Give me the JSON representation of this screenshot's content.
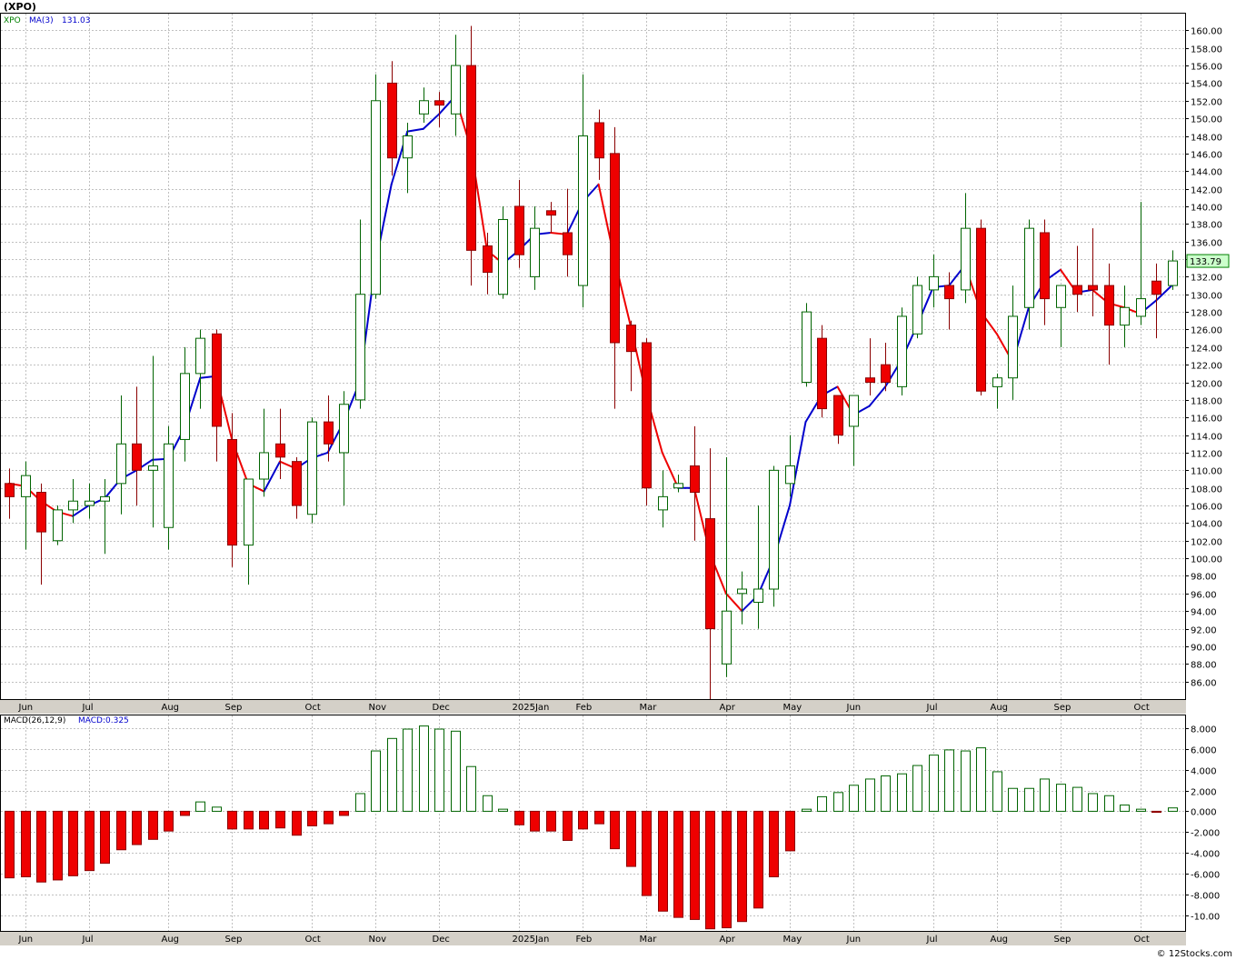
{
  "chart_data": [
    {
      "type": "candlestick",
      "symbol_label": "(XPO)",
      "legend": {
        "ticker": "XPO",
        "ma_label": "MA(3)",
        "ma_value": "131.03"
      },
      "last_price": "133.79",
      "ylim": [
        84,
        162
      ],
      "y_ticks": [
        "86.00",
        "88.00",
        "90.00",
        "92.00",
        "94.00",
        "96.00",
        "98.00",
        "100.00",
        "102.00",
        "104.00",
        "106.00",
        "108.00",
        "110.00",
        "112.00",
        "114.00",
        "116.00",
        "118.00",
        "120.00",
        "122.00",
        "124.00",
        "126.00",
        "128.00",
        "130.00",
        "132.00",
        "134.00",
        "136.00",
        "138.00",
        "140.00",
        "142.00",
        "144.00",
        "146.00",
        "148.00",
        "150.00",
        "152.00",
        "154.00",
        "156.00",
        "158.00",
        "160.00"
      ],
      "x_labels": [
        {
          "w": 1,
          "label": "Jun"
        },
        {
          "w": 5,
          "label": "Jul"
        },
        {
          "w": 10,
          "label": "Aug"
        },
        {
          "w": 14,
          "label": "Sep"
        },
        {
          "w": 19,
          "label": "Oct"
        },
        {
          "w": 23,
          "label": "Nov"
        },
        {
          "w": 27,
          "label": "Dec"
        },
        {
          "w": 32,
          "label": "2025Jan"
        },
        {
          "w": 36,
          "label": "Feb"
        },
        {
          "w": 40,
          "label": "Mar"
        },
        {
          "w": 45,
          "label": "Apr"
        },
        {
          "w": 49,
          "label": "May"
        },
        {
          "w": 53,
          "label": "Jun"
        },
        {
          "w": 58,
          "label": "Jul"
        },
        {
          "w": 62,
          "label": "Aug"
        },
        {
          "w": 66,
          "label": "Sep"
        },
        {
          "w": 71,
          "label": "Oct"
        }
      ],
      "candles": [
        {
          "o": 108.5,
          "h": 110.2,
          "l": 104.5,
          "c": 107.0
        },
        {
          "o": 107.0,
          "h": 111.0,
          "l": 101.0,
          "c": 109.4
        },
        {
          "o": 107.5,
          "h": 108.5,
          "l": 97.0,
          "c": 103.0
        },
        {
          "o": 102.0,
          "h": 106.0,
          "l": 101.5,
          "c": 105.5
        },
        {
          "o": 105.5,
          "h": 109.0,
          "l": 104.0,
          "c": 106.5
        },
        {
          "o": 106.0,
          "h": 108.5,
          "l": 104.5,
          "c": 106.5
        },
        {
          "o": 106.5,
          "h": 109.0,
          "l": 100.5,
          "c": 107.0
        },
        {
          "o": 108.5,
          "h": 118.5,
          "l": 105.0,
          "c": 113.0
        },
        {
          "o": 113.0,
          "h": 119.5,
          "l": 106.0,
          "c": 110.0
        },
        {
          "o": 110.0,
          "h": 123.0,
          "l": 103.5,
          "c": 110.5
        },
        {
          "o": 103.5,
          "h": 115.0,
          "l": 101.0,
          "c": 113.0
        },
        {
          "o": 113.5,
          "h": 124.0,
          "l": 111.0,
          "c": 121.0
        },
        {
          "o": 121.0,
          "h": 126.0,
          "l": 117.0,
          "c": 125.0
        },
        {
          "o": 125.5,
          "h": 126.0,
          "l": 111.0,
          "c": 115.0
        },
        {
          "o": 113.5,
          "h": 116.5,
          "l": 99.0,
          "c": 101.5
        },
        {
          "o": 101.5,
          "h": 108.5,
          "l": 97.0,
          "c": 109.0
        },
        {
          "o": 109.0,
          "h": 117.0,
          "l": 107.0,
          "c": 112.0
        },
        {
          "o": 113.0,
          "h": 117.0,
          "l": 109.0,
          "c": 111.5
        },
        {
          "o": 111.0,
          "h": 111.5,
          "l": 104.5,
          "c": 106.0
        },
        {
          "o": 105.0,
          "h": 116.0,
          "l": 104.0,
          "c": 115.5
        },
        {
          "o": 115.5,
          "h": 118.5,
          "l": 111.0,
          "c": 113.0
        },
        {
          "o": 112.0,
          "h": 119.0,
          "l": 106.0,
          "c": 117.5
        },
        {
          "o": 118.0,
          "h": 138.5,
          "l": 117.0,
          "c": 130.0
        },
        {
          "o": 130.0,
          "h": 155.0,
          "l": 129.5,
          "c": 152.0
        },
        {
          "o": 154.0,
          "h": 156.5,
          "l": 143.5,
          "c": 145.5
        },
        {
          "o": 145.5,
          "h": 149.5,
          "l": 141.5,
          "c": 148.0
        },
        {
          "o": 150.5,
          "h": 153.5,
          "l": 149.5,
          "c": 152.0
        },
        {
          "o": 152.0,
          "h": 153.0,
          "l": 149.0,
          "c": 151.5
        },
        {
          "o": 150.5,
          "h": 159.5,
          "l": 148.0,
          "c": 156.0
        },
        {
          "o": 156.0,
          "h": 160.5,
          "l": 131.0,
          "c": 135.0
        },
        {
          "o": 135.5,
          "h": 137.0,
          "l": 130.0,
          "c": 132.5
        },
        {
          "o": 130.0,
          "h": 140.0,
          "l": 129.5,
          "c": 138.5
        },
        {
          "o": 140.0,
          "h": 143.0,
          "l": 133.0,
          "c": 134.5
        },
        {
          "o": 132.0,
          "h": 140.0,
          "l": 130.5,
          "c": 137.5
        },
        {
          "o": 139.5,
          "h": 140.5,
          "l": 137.0,
          "c": 139.0
        },
        {
          "o": 137.0,
          "h": 142.0,
          "l": 132.0,
          "c": 134.5
        },
        {
          "o": 131.0,
          "h": 155.0,
          "l": 128.5,
          "c": 148.0
        },
        {
          "o": 149.5,
          "h": 151.0,
          "l": 143.0,
          "c": 145.5
        },
        {
          "o": 146.0,
          "h": 149.0,
          "l": 117.0,
          "c": 124.5
        },
        {
          "o": 126.5,
          "h": 127.0,
          "l": 119.0,
          "c": 123.5
        },
        {
          "o": 124.5,
          "h": 125.0,
          "l": 106.0,
          "c": 108.0
        },
        {
          "o": 105.5,
          "h": 110.0,
          "l": 103.5,
          "c": 107.0
        },
        {
          "o": 108.0,
          "h": 109.5,
          "l": 107.5,
          "c": 108.5
        },
        {
          "o": 110.5,
          "h": 115.0,
          "l": 102.0,
          "c": 107.5
        },
        {
          "o": 104.5,
          "h": 112.5,
          "l": 84.0,
          "c": 92.0
        },
        {
          "o": 88.0,
          "h": 111.5,
          "l": 86.5,
          "c": 94.0
        },
        {
          "o": 96.0,
          "h": 98.5,
          "l": 92.5,
          "c": 96.5
        },
        {
          "o": 95.0,
          "h": 106.0,
          "l": 92.0,
          "c": 96.5
        },
        {
          "o": 96.5,
          "h": 110.5,
          "l": 94.5,
          "c": 110.0
        },
        {
          "o": 108.5,
          "h": 114.0,
          "l": 107.0,
          "c": 110.5
        },
        {
          "o": 120.0,
          "h": 129.0,
          "l": 119.5,
          "c": 128.0
        },
        {
          "o": 125.0,
          "h": 126.5,
          "l": 116.0,
          "c": 117.0
        },
        {
          "o": 118.5,
          "h": 118.5,
          "l": 113.0,
          "c": 114.0
        },
        {
          "o": 115.0,
          "h": 118.5,
          "l": 110.5,
          "c": 118.5
        },
        {
          "o": 120.5,
          "h": 125.0,
          "l": 118.5,
          "c": 120.0
        },
        {
          "o": 122.0,
          "h": 124.5,
          "l": 119.0,
          "c": 120.0
        },
        {
          "o": 119.5,
          "h": 128.5,
          "l": 118.5,
          "c": 127.5
        },
        {
          "o": 125.5,
          "h": 132.0,
          "l": 125.0,
          "c": 131.0
        },
        {
          "o": 130.5,
          "h": 134.5,
          "l": 128.5,
          "c": 132.0
        },
        {
          "o": 131.0,
          "h": 132.5,
          "l": 126.0,
          "c": 129.5
        },
        {
          "o": 130.5,
          "h": 141.5,
          "l": 129.0,
          "c": 137.5
        },
        {
          "o": 137.5,
          "h": 138.5,
          "l": 118.5,
          "c": 119.0
        },
        {
          "o": 119.5,
          "h": 121.0,
          "l": 117.0,
          "c": 120.5
        },
        {
          "o": 120.5,
          "h": 131.0,
          "l": 118.0,
          "c": 127.5
        },
        {
          "o": 128.5,
          "h": 138.5,
          "l": 126.0,
          "c": 137.5
        },
        {
          "o": 137.0,
          "h": 138.5,
          "l": 126.5,
          "c": 129.5
        },
        {
          "o": 128.5,
          "h": 131.0,
          "l": 124.0,
          "c": 131.0
        },
        {
          "o": 131.0,
          "h": 135.5,
          "l": 128.0,
          "c": 130.0
        },
        {
          "o": 131.0,
          "h": 137.5,
          "l": 127.5,
          "c": 130.5
        },
        {
          "o": 131.0,
          "h": 133.5,
          "l": 122.0,
          "c": 126.5
        },
        {
          "o": 126.5,
          "h": 131.0,
          "l": 124.0,
          "c": 128.5
        },
        {
          "o": 127.5,
          "h": 140.5,
          "l": 126.5,
          "c": 129.5
        },
        {
          "o": 131.5,
          "h": 133.5,
          "l": 125.0,
          "c": 130.0
        },
        {
          "o": 131.0,
          "h": 135.0,
          "l": 130.5,
          "c": 133.79
        }
      ],
      "ma3": [
        108.5,
        108.2,
        106.5,
        105.3,
        104.8,
        106.0,
        106.8,
        109.0,
        110.0,
        111.2,
        111.3,
        114.8,
        120.5,
        120.7,
        113.4,
        108.5,
        107.6,
        111.0,
        110.2,
        111.4,
        112.0,
        115.5,
        120.0,
        133.5,
        142.5,
        148.5,
        148.8,
        150.5,
        152.5,
        146.5,
        135.0,
        133.5,
        135.0,
        136.8,
        137.0,
        136.8,
        140.5,
        142.5,
        134.0,
        126.5,
        118.5,
        112.0,
        108.0,
        108.0,
        100.5,
        96.0,
        94.0,
        95.8,
        100.0,
        106.0,
        115.5,
        118.5,
        119.5,
        116.3,
        117.3,
        119.5,
        122.5,
        126.5,
        130.8,
        131.0,
        133.3,
        128.0,
        125.5,
        122.3,
        128.5,
        131.5,
        132.8,
        130.2,
        130.5,
        129.0,
        128.5,
        127.8,
        129.3,
        131.03
      ],
      "macd_label": "MACD(26,12,9)",
      "macd_value_label": "MACD:0.325",
      "macd_ylim": [
        -11.5,
        9.3
      ],
      "macd_ticks": [
        "-10.00",
        "-8.000",
        "-6.000",
        "-4.000",
        "-2.000",
        "0.000",
        "2.000",
        "4.000",
        "6.000",
        "8.000"
      ],
      "macd_hist": [
        -6.4,
        -6.3,
        -6.8,
        -6.6,
        -6.2,
        -5.7,
        -5.0,
        -3.7,
        -3.2,
        -2.7,
        -1.9,
        -0.4,
        0.9,
        0.4,
        -1.7,
        -1.7,
        -1.7,
        -1.6,
        -2.3,
        -1.4,
        -1.2,
        -0.4,
        1.7,
        5.8,
        7.0,
        7.9,
        8.2,
        7.9,
        7.7,
        4.3,
        1.5,
        0.2,
        -1.3,
        -1.9,
        -1.9,
        -2.8,
        -1.7,
        -1.2,
        -3.6,
        -5.3,
        -8.1,
        -9.6,
        -10.2,
        -10.4,
        -11.3,
        -11.2,
        -10.6,
        -9.3,
        -6.3,
        -3.8,
        0.2,
        1.4,
        1.8,
        2.5,
        3.1,
        3.4,
        3.6,
        4.4,
        5.4,
        5.9,
        5.8,
        6.1,
        3.8,
        2.2,
        2.2,
        3.1,
        2.6,
        2.3,
        1.7,
        1.5,
        0.6,
        0.2,
        -0.1,
        0.325
      ],
      "footer": "© 12Stocks.com"
    }
  ]
}
